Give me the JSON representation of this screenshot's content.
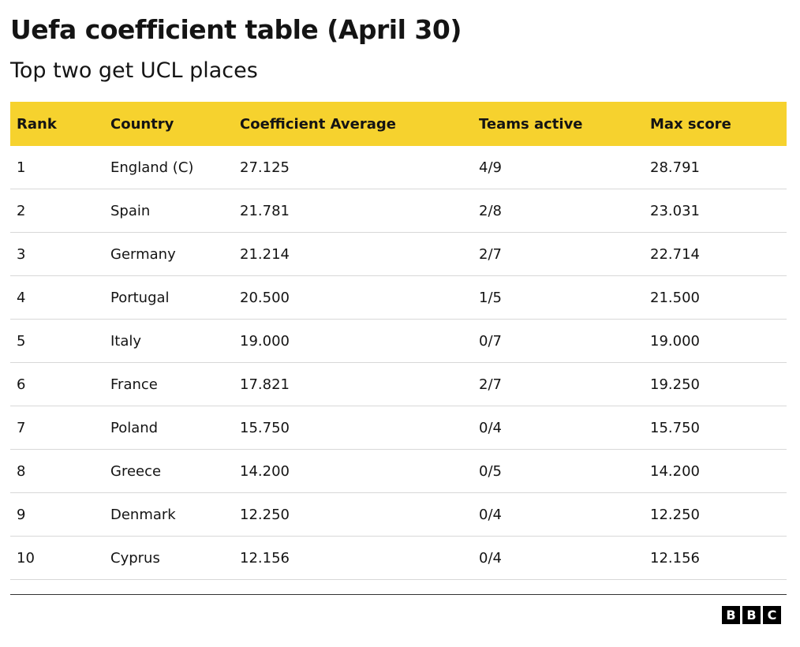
{
  "header": {
    "title": "Uefa coefficient table (April 30)",
    "subtitle": "Top two get UCL places"
  },
  "table": {
    "columns": [
      "Rank",
      "Country",
      "Coefficient Average",
      "Teams active",
      "Max score"
    ],
    "rows": [
      [
        "1",
        "England (C)",
        "27.125",
        "4/9",
        "28.791"
      ],
      [
        "2",
        "Spain",
        "21.781",
        "2/8",
        "23.031"
      ],
      [
        "3",
        "Germany",
        "21.214",
        "2/7",
        "22.714"
      ],
      [
        "4",
        "Portugal",
        "20.500",
        "1/5",
        "21.500"
      ],
      [
        "5",
        "Italy",
        "19.000",
        "0/7",
        "19.000"
      ],
      [
        "6",
        "France",
        "17.821",
        "2/7",
        "19.250"
      ],
      [
        "7",
        "Poland",
        "15.750",
        "0/4",
        "15.750"
      ],
      [
        "8",
        "Greece",
        "14.200",
        "0/5",
        "14.200"
      ],
      [
        "9",
        "Denmark",
        "12.250",
        "0/4",
        "12.250"
      ],
      [
        "10",
        "Cyprus",
        "12.156",
        "0/4",
        "12.156"
      ]
    ]
  },
  "footer": {
    "logo": [
      "B",
      "B",
      "C"
    ]
  }
}
